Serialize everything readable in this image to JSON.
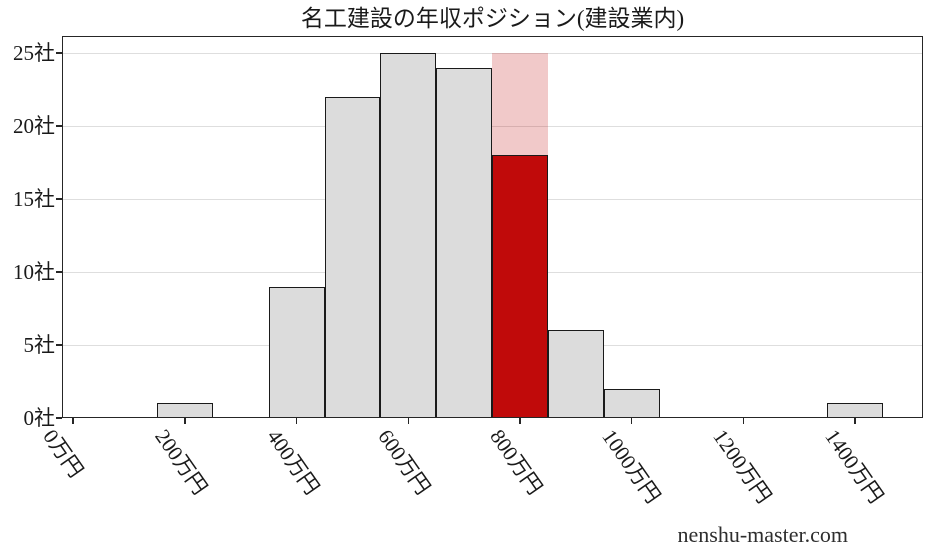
{
  "watermark": "nenshu-master.com",
  "chart_data": {
    "type": "bar",
    "subtype": "histogram",
    "title": "名工建設の年収ポジション(建設業内)",
    "xlabel": "",
    "ylabel": "",
    "x_unit": "万円",
    "y_unit": "社",
    "bin_width": 100,
    "xlim": [
      -20,
      1520
    ],
    "ylim": [
      0,
      26.2
    ],
    "grid": "horizontal",
    "legend": "none",
    "x_ticks": [
      {
        "value": 0,
        "label": "0万円"
      },
      {
        "value": 200,
        "label": "200万円"
      },
      {
        "value": 400,
        "label": "400万円"
      },
      {
        "value": 600,
        "label": "600万円"
      },
      {
        "value": 800,
        "label": "800万円"
      },
      {
        "value": 1000,
        "label": "1000万円"
      },
      {
        "value": 1200,
        "label": "1200万円"
      },
      {
        "value": 1400,
        "label": "1400万円"
      }
    ],
    "y_ticks": [
      {
        "value": 0,
        "label": "0社"
      },
      {
        "value": 5,
        "label": "5社"
      },
      {
        "value": 10,
        "label": "10社"
      },
      {
        "value": 15,
        "label": "15社"
      },
      {
        "value": 20,
        "label": "20社"
      },
      {
        "value": 25,
        "label": "25社"
      }
    ],
    "bins": [
      {
        "center": 200,
        "count": 1
      },
      {
        "center": 400,
        "count": 9
      },
      {
        "center": 500,
        "count": 22
      },
      {
        "center": 600,
        "count": 25
      },
      {
        "center": 700,
        "count": 24
      },
      {
        "center": 800,
        "count": 18,
        "highlight": true,
        "overlay_top": 25
      },
      {
        "center": 900,
        "count": 6
      },
      {
        "center": 1000,
        "count": 2
      },
      {
        "center": 1400,
        "count": 1
      }
    ],
    "colors": {
      "bar_fill": "#dcdcdc",
      "bar_edge": "#1a1a1a",
      "highlight_fill": "#c00a0a",
      "highlight_overlay": "rgba(192,10,10,0.22)",
      "grid": "#dedede",
      "spine": "#262626",
      "text": "#1a1a1a"
    }
  }
}
